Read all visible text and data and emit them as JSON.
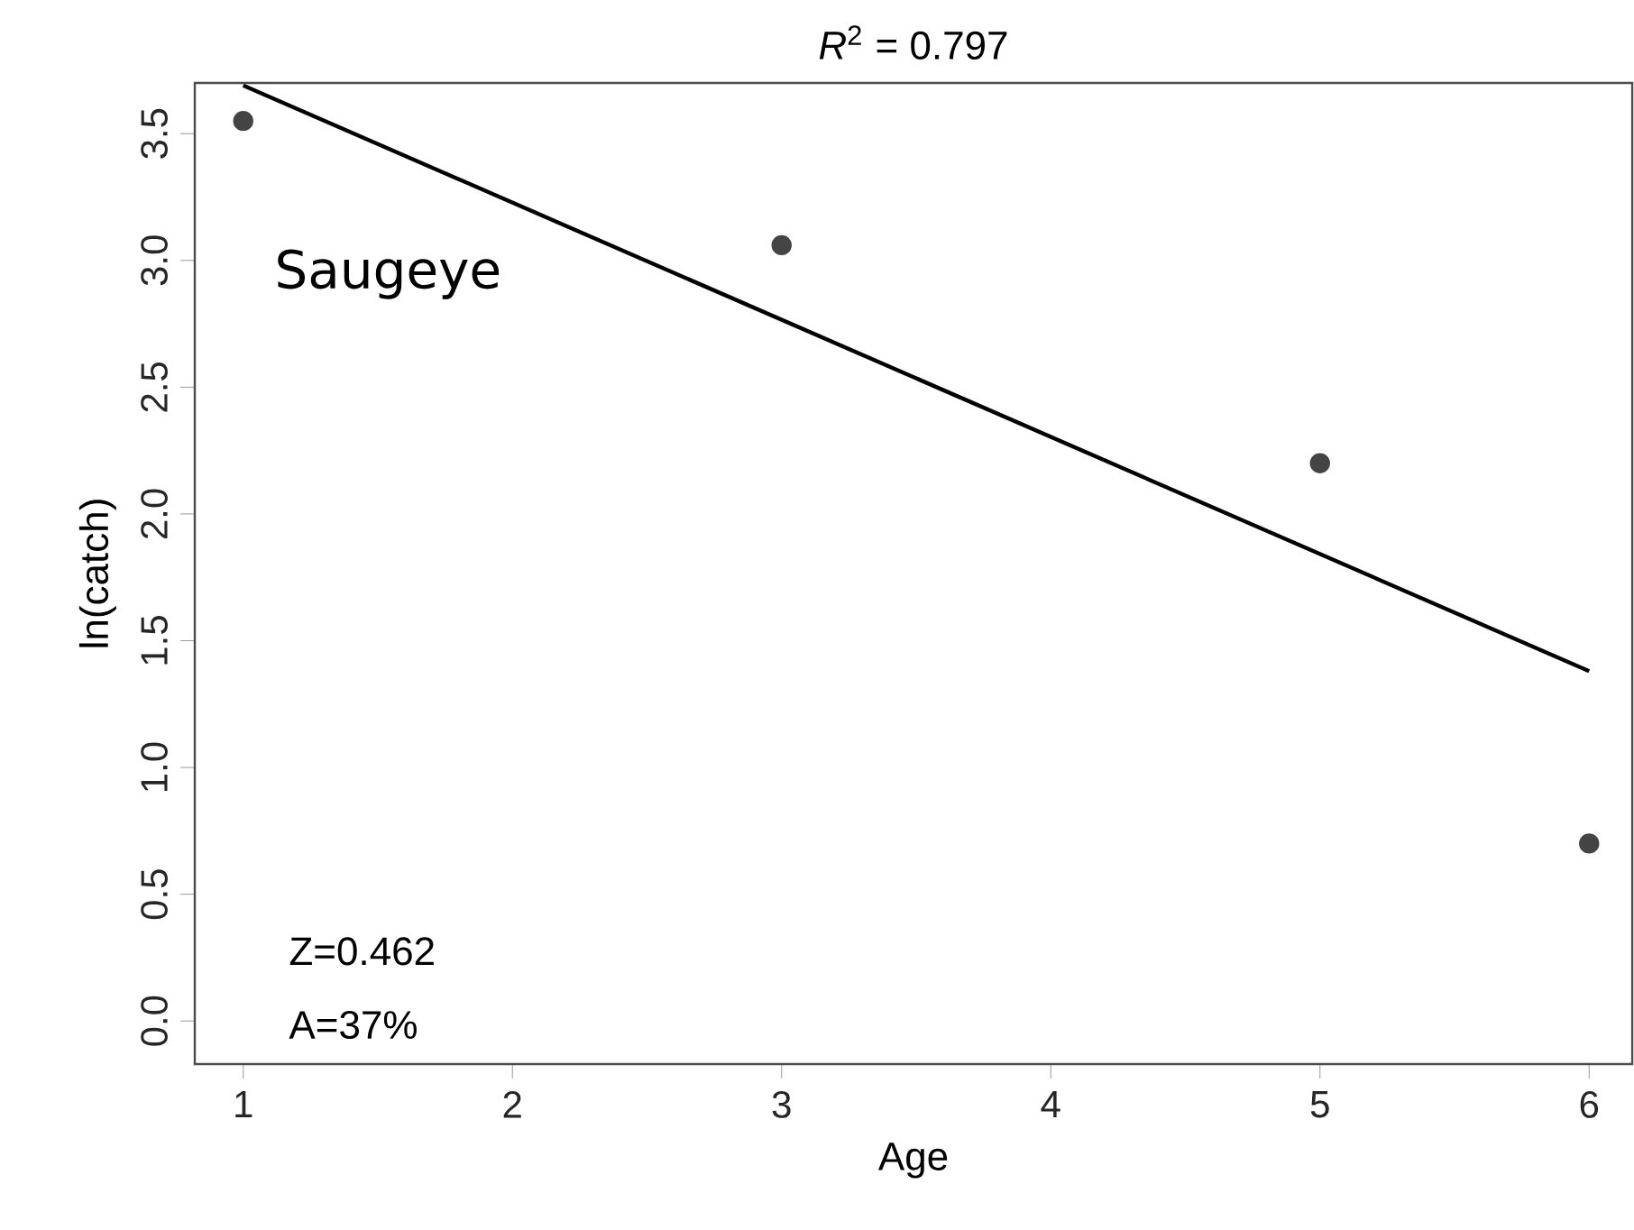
{
  "chart_data": {
    "type": "scatter",
    "title": "*R*$^{2}$ = 0.797",
    "xlabel": "Age",
    "ylabel": "ln(catch)",
    "series": [
      {
        "color": "#444444",
        "x": [
          1,
          3,
          5,
          6
        ],
        "values": [
          3.55,
          3.06,
          2.2,
          0.7
        ],
        "marker": "circle"
      },
      {
        "type": "line",
        "color": "#000000",
        "x": [
          1,
          6
        ],
        "values": [
          3.69,
          1.38
        ],
        "marker": "none",
        "line_style": "solid"
      }
    ],
    "annotations": [
      "Saugeye",
      "Z=0.462",
      "A=37%"
    ],
    "xlim": [
      0.82,
      6.16
    ],
    "ylim": [
      -0.17,
      3.7
    ],
    "xticks": [
      1,
      2,
      3,
      4,
      5,
      6
    ],
    "yticks": [
      {
        "value": 0,
        "label": "0.0"
      },
      0.5,
      {
        "value": 1,
        "label": "1.0"
      },
      1.5,
      {
        "value": 2,
        "label": "2.0"
      },
      2.5,
      {
        "value": 3,
        "label": "3.0"
      },
      3.5
    ],
    "grid": false
  }
}
